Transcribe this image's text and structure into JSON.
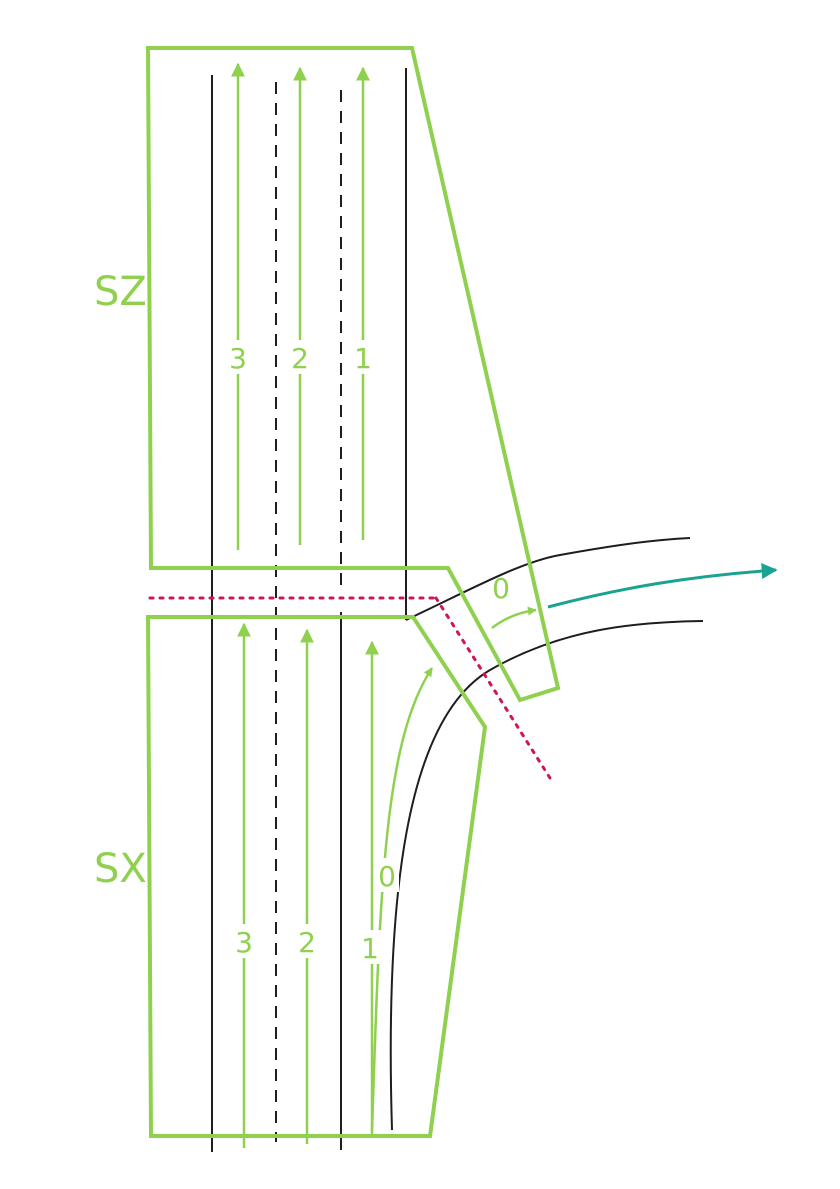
{
  "colors": {
    "zone": "#8fd14f",
    "road": "#1e1e1e",
    "divider": "#d1145a",
    "exit_arrow": "#1aa391"
  },
  "zones": {
    "upper_label": "SZ",
    "lower_label": "SX"
  },
  "lanes": {
    "upper": [
      "3",
      "2",
      "1"
    ],
    "upper_ramp": "0",
    "lower": [
      "3",
      "2",
      "1"
    ],
    "lower_ramp": "0"
  }
}
